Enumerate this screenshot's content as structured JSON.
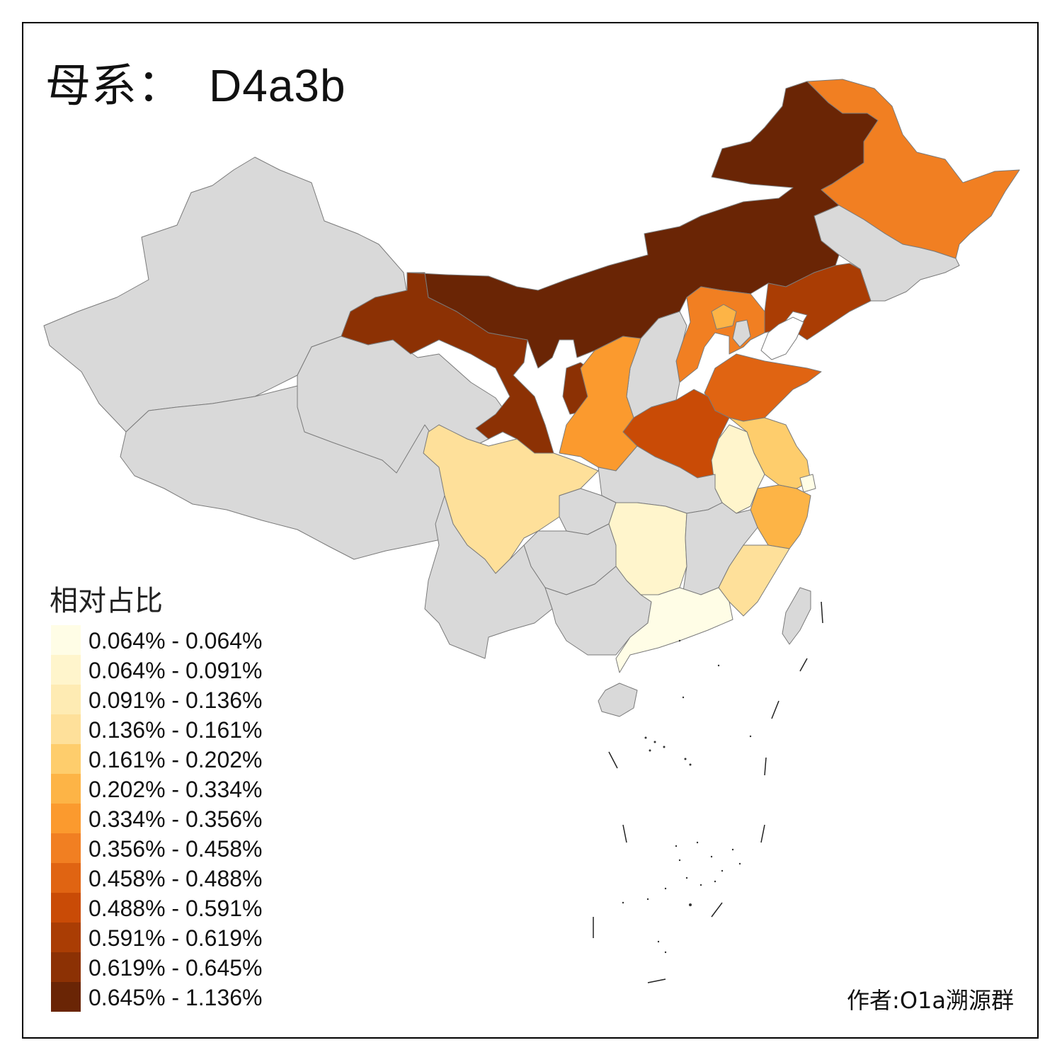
{
  "map": {
    "title_prefix": "母系：",
    "title_code": "D4a3b",
    "legend_title": "相对占比",
    "author": "作者:O1a溯源群",
    "no_data_color": "#d9d9d9",
    "legend": [
      {
        "label": "0.064% - 0.064%",
        "color": "#fffde6"
      },
      {
        "label": "0.064% - 0.091%",
        "color": "#fff5cc"
      },
      {
        "label": "0.091% - 0.136%",
        "color": "#feebb3"
      },
      {
        "label": "0.136% - 0.161%",
        "color": "#fee09a"
      },
      {
        "label": "0.161% - 0.202%",
        "color": "#fecd6c"
      },
      {
        "label": "0.202% - 0.334%",
        "color": "#fdb446"
      },
      {
        "label": "0.334% - 0.356%",
        "color": "#fb9a2e"
      },
      {
        "label": "0.356% - 0.458%",
        "color": "#f17f22"
      },
      {
        "label": "0.458% - 0.488%",
        "color": "#e06412"
      },
      {
        "label": "0.488% - 0.591%",
        "color": "#c94b06"
      },
      {
        "label": "0.591% - 0.619%",
        "color": "#aa3d04"
      },
      {
        "label": "0.619% - 0.645%",
        "color": "#8c3104"
      },
      {
        "label": "0.645% - 1.136%",
        "color": "#6a2505"
      }
    ]
  }
}
